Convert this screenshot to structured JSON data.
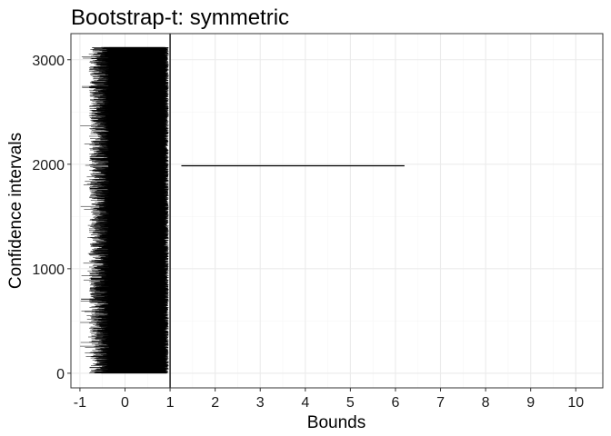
{
  "chart_data": {
    "type": "interval",
    "title": "Bootstrap-t: symmetric",
    "xlabel": "Bounds",
    "ylabel": "Confidence intervals",
    "xlim": [
      -1.2,
      10.6
    ],
    "ylim": [
      -140,
      3250
    ],
    "x_ticks": [
      -1,
      0,
      1,
      2,
      3,
      4,
      5,
      6,
      7,
      8,
      9,
      10
    ],
    "x_tick_labels": [
      "-1",
      "0",
      "1",
      "2",
      "3",
      "4",
      "5",
      "6",
      "7",
      "8",
      "9",
      "10"
    ],
    "y_ticks": [
      0,
      1000,
      2000,
      3000
    ],
    "y_tick_labels": [
      "0",
      "1000",
      "2000",
      "3000"
    ],
    "reference_line_x": 1,
    "n_intervals": 3120,
    "interval_band": {
      "lower_typical": -0.35,
      "lower_min": -1.0,
      "upper_typical": 0.85,
      "upper_max": 0.97
    },
    "outlier_interval": {
      "index": 1985,
      "lower": 1.25,
      "upper": 6.2
    },
    "grid": true,
    "legend": "none",
    "colors": {
      "intervals": "#000000",
      "grid_major": "#ebebeb",
      "grid_minor": "#f5f5f5",
      "panel_border": "#333333"
    }
  }
}
